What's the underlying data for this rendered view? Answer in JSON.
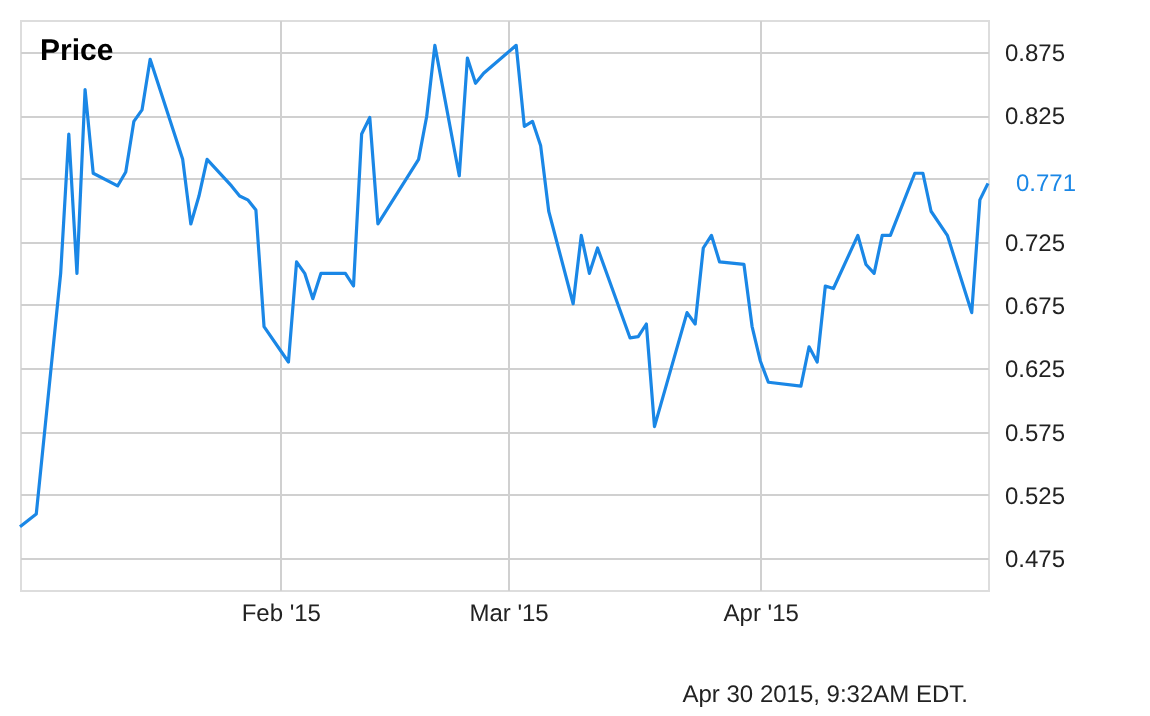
{
  "chart_data": {
    "type": "line",
    "title": "Price",
    "annotations": [
      "Apr 30 2015, 9:32AM EDT."
    ],
    "x": [
      "2014-12-31",
      "2015-01-02",
      "2015-01-05",
      "2015-01-06",
      "2015-01-07",
      "2015-01-08",
      "2015-01-09",
      "2015-01-12",
      "2015-01-13",
      "2015-01-14",
      "2015-01-15",
      "2015-01-16",
      "2015-01-20",
      "2015-01-21",
      "2015-01-22",
      "2015-01-23",
      "2015-01-26",
      "2015-01-27",
      "2015-01-28",
      "2015-01-29",
      "2015-01-30",
      "2015-02-02",
      "2015-02-03",
      "2015-02-04",
      "2015-02-05",
      "2015-02-06",
      "2015-02-09",
      "2015-02-10",
      "2015-02-11",
      "2015-02-12",
      "2015-02-13",
      "2015-02-18",
      "2015-02-19",
      "2015-02-20",
      "2015-02-23",
      "2015-02-24",
      "2015-02-25",
      "2015-02-26",
      "2015-03-02",
      "2015-03-03",
      "2015-03-04",
      "2015-03-05",
      "2015-03-06",
      "2015-03-09",
      "2015-03-10",
      "2015-03-11",
      "2015-03-12",
      "2015-03-16",
      "2015-03-17",
      "2015-03-18",
      "2015-03-19",
      "2015-03-23",
      "2015-03-24",
      "2015-03-25",
      "2015-03-26",
      "2015-03-27",
      "2015-03-30",
      "2015-03-31",
      "2015-04-01",
      "2015-04-02",
      "2015-04-06",
      "2015-04-07",
      "2015-04-08",
      "2015-04-09",
      "2015-04-10",
      "2015-04-13",
      "2015-04-14",
      "2015-04-15",
      "2015-04-16",
      "2015-04-17",
      "2015-04-20",
      "2015-04-21",
      "2015-04-22",
      "2015-04-24",
      "2015-04-27",
      "2015-04-28",
      "2015-04-29"
    ],
    "series": [
      {
        "color": "#1a87e6",
        "values": [
          0.5,
          0.51,
          0.7,
          0.81,
          0.7,
          0.845,
          0.779,
          0.769,
          0.78,
          0.82,
          0.829,
          0.869,
          0.79,
          0.739,
          0.761,
          0.79,
          0.769,
          0.761,
          0.758,
          0.75,
          0.658,
          0.63,
          0.709,
          0.7,
          0.68,
          0.7,
          0.7,
          0.69,
          0.81,
          0.823,
          0.739,
          0.79,
          0.824,
          0.88,
          0.777,
          0.87,
          0.85,
          0.858,
          0.88,
          0.816,
          0.82,
          0.801,
          0.749,
          0.676,
          0.73,
          0.7,
          0.72,
          0.649,
          0.65,
          0.66,
          0.579,
          0.669,
          0.66,
          0.72,
          0.73,
          0.709,
          0.707,
          0.658,
          0.631,
          0.614,
          0.611,
          0.642,
          0.63,
          0.69,
          0.688,
          0.73,
          0.707,
          0.7,
          0.73,
          0.73,
          0.779,
          0.779,
          0.749,
          0.73,
          0.669,
          0.758,
          0.771
        ],
        "value_labels": [
          null,
          null,
          null,
          null,
          null,
          null,
          null,
          null,
          null,
          null,
          null,
          null,
          null,
          null,
          null,
          null,
          null,
          null,
          null,
          null,
          null,
          null,
          null,
          null,
          null,
          null,
          null,
          null,
          null,
          null,
          null,
          null,
          null,
          null,
          null,
          null,
          null,
          null,
          null,
          null,
          null,
          null,
          null,
          null,
          null,
          null,
          null,
          null,
          null,
          null,
          null,
          null,
          null,
          null,
          null,
          null,
          null,
          null,
          null,
          null,
          null,
          null,
          null,
          null,
          null,
          null,
          null,
          null,
          null,
          null,
          null,
          null,
          null,
          null,
          null,
          null,
          "0.771"
        ]
      }
    ],
    "xlim": [
      "2014-12-31",
      "2015-04-29"
    ],
    "xticks": [
      {
        "value": "2015-02-01",
        "label": "Feb '15"
      },
      {
        "value": "2015-03-01",
        "label": "Mar '15"
      },
      {
        "value": "2015-04-01",
        "label": "Apr '15"
      }
    ],
    "ylim": [
      0.45,
      0.9
    ],
    "yticks": [
      0.475,
      0.525,
      0.575,
      0.625,
      0.675,
      0.725,
      {
        "value": 0.775,
        "label": null
      },
      0.825,
      0.875
    ],
    "grid": true,
    "marker": "none",
    "line_style": "solid"
  }
}
